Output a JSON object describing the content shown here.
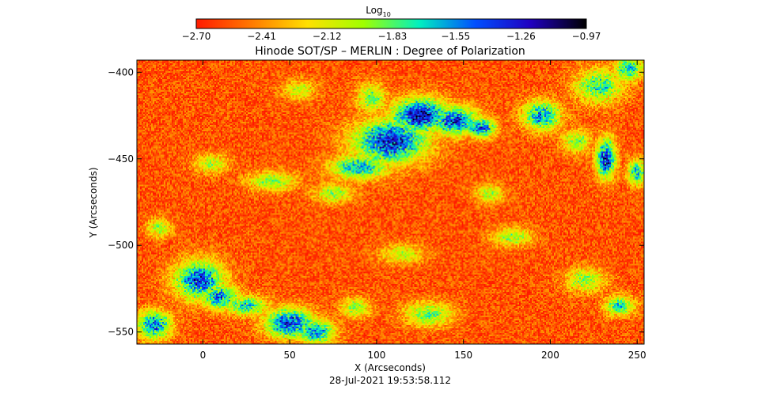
{
  "chart_data": {
    "type": "heatmap",
    "title": "Hinode SOT/SP – MERLIN : Degree of Polarization",
    "xlabel": "X (Arcseconds)",
    "ylabel": "Y (Arcseconds)",
    "xlim": [
      -38,
      254
    ],
    "ylim": [
      -557,
      -393
    ],
    "x_ticks": [
      0,
      50,
      100,
      150,
      200,
      250
    ],
    "x_tick_labels": [
      "0",
      "50",
      "100",
      "150",
      "200",
      "250"
    ],
    "y_ticks": [
      -400,
      -450,
      -500,
      -550
    ],
    "y_tick_labels": [
      "−400",
      "−450",
      "−500",
      "−550"
    ],
    "colorbar": {
      "label_main": "Log",
      "label_sub": "10",
      "min": -2.7,
      "max": -0.97,
      "tick_values": [
        -2.7,
        -2.41,
        -2.12,
        -1.83,
        -1.55,
        -1.26,
        -0.97
      ],
      "tick_labels": [
        "−2.70",
        "−2.41",
        "−2.12",
        "−1.83",
        "−1.55",
        "−1.26",
        "−0.97"
      ],
      "colormap": [
        "#ff1a00",
        "#ff7a00",
        "#ffe000",
        "#a0ff00",
        "#00f0c0",
        "#0050ff",
        "#2000c0",
        "#000000"
      ]
    },
    "background_level": -2.55,
    "features": [
      {
        "x": 108,
        "y": -440,
        "sx": 15,
        "sy": 9,
        "level": -1.3
      },
      {
        "x": 125,
        "y": -425,
        "sx": 12,
        "sy": 7,
        "level": -1.25
      },
      {
        "x": 145,
        "y": -428,
        "sx": 10,
        "sy": 6,
        "level": -1.4
      },
      {
        "x": 97,
        "y": -415,
        "sx": 6,
        "sy": 6,
        "level": -1.85
      },
      {
        "x": 90,
        "y": -455,
        "sx": 12,
        "sy": 5,
        "level": -1.6
      },
      {
        "x": 160,
        "y": -432,
        "sx": 6,
        "sy": 4,
        "level": -1.4
      },
      {
        "x": 232,
        "y": -450,
        "sx": 4,
        "sy": 8,
        "level": -1.3
      },
      {
        "x": 195,
        "y": -425,
        "sx": 8,
        "sy": 6,
        "level": -1.55
      },
      {
        "x": 228,
        "y": -408,
        "sx": 10,
        "sy": 7,
        "level": -1.75
      },
      {
        "x": 245,
        "y": -398,
        "sx": 6,
        "sy": 5,
        "level": -1.65
      },
      {
        "x": 215,
        "y": -440,
        "sx": 6,
        "sy": 5,
        "level": -1.9
      },
      {
        "x": -2,
        "y": -520,
        "sx": 10,
        "sy": 8,
        "level": -1.4
      },
      {
        "x": 10,
        "y": -530,
        "sx": 8,
        "sy": 5,
        "level": -1.55
      },
      {
        "x": 25,
        "y": -535,
        "sx": 9,
        "sy": 4,
        "level": -1.7
      },
      {
        "x": 50,
        "y": -545,
        "sx": 10,
        "sy": 6,
        "level": -1.35
      },
      {
        "x": 65,
        "y": -550,
        "sx": 8,
        "sy": 5,
        "level": -1.55
      },
      {
        "x": -28,
        "y": -546,
        "sx": 7,
        "sy": 6,
        "level": -1.5
      },
      {
        "x": 75,
        "y": -470,
        "sx": 8,
        "sy": 4,
        "level": -1.95
      },
      {
        "x": 40,
        "y": -463,
        "sx": 10,
        "sy": 4,
        "level": -1.9
      },
      {
        "x": 5,
        "y": -453,
        "sx": 7,
        "sy": 4,
        "level": -2.0
      },
      {
        "x": -25,
        "y": -490,
        "sx": 5,
        "sy": 4,
        "level": -1.95
      },
      {
        "x": 130,
        "y": -540,
        "sx": 10,
        "sy": 5,
        "level": -1.85
      },
      {
        "x": 178,
        "y": -495,
        "sx": 8,
        "sy": 4,
        "level": -1.95
      },
      {
        "x": 220,
        "y": -520,
        "sx": 8,
        "sy": 5,
        "level": -1.9
      },
      {
        "x": 240,
        "y": -535,
        "sx": 6,
        "sy": 4,
        "level": -1.7
      },
      {
        "x": 250,
        "y": -458,
        "sx": 4,
        "sy": 5,
        "level": -1.65
      },
      {
        "x": 55,
        "y": -410,
        "sx": 7,
        "sy": 4,
        "level": -2.05
      },
      {
        "x": 115,
        "y": -505,
        "sx": 9,
        "sy": 4,
        "level": -2.05
      },
      {
        "x": 165,
        "y": -470,
        "sx": 6,
        "sy": 4,
        "level": -2.0
      },
      {
        "x": 88,
        "y": -536,
        "sx": 6,
        "sy": 4,
        "level": -1.9
      }
    ],
    "grid": false
  },
  "timestamp": "28-Jul-2021 19:53:58.112"
}
